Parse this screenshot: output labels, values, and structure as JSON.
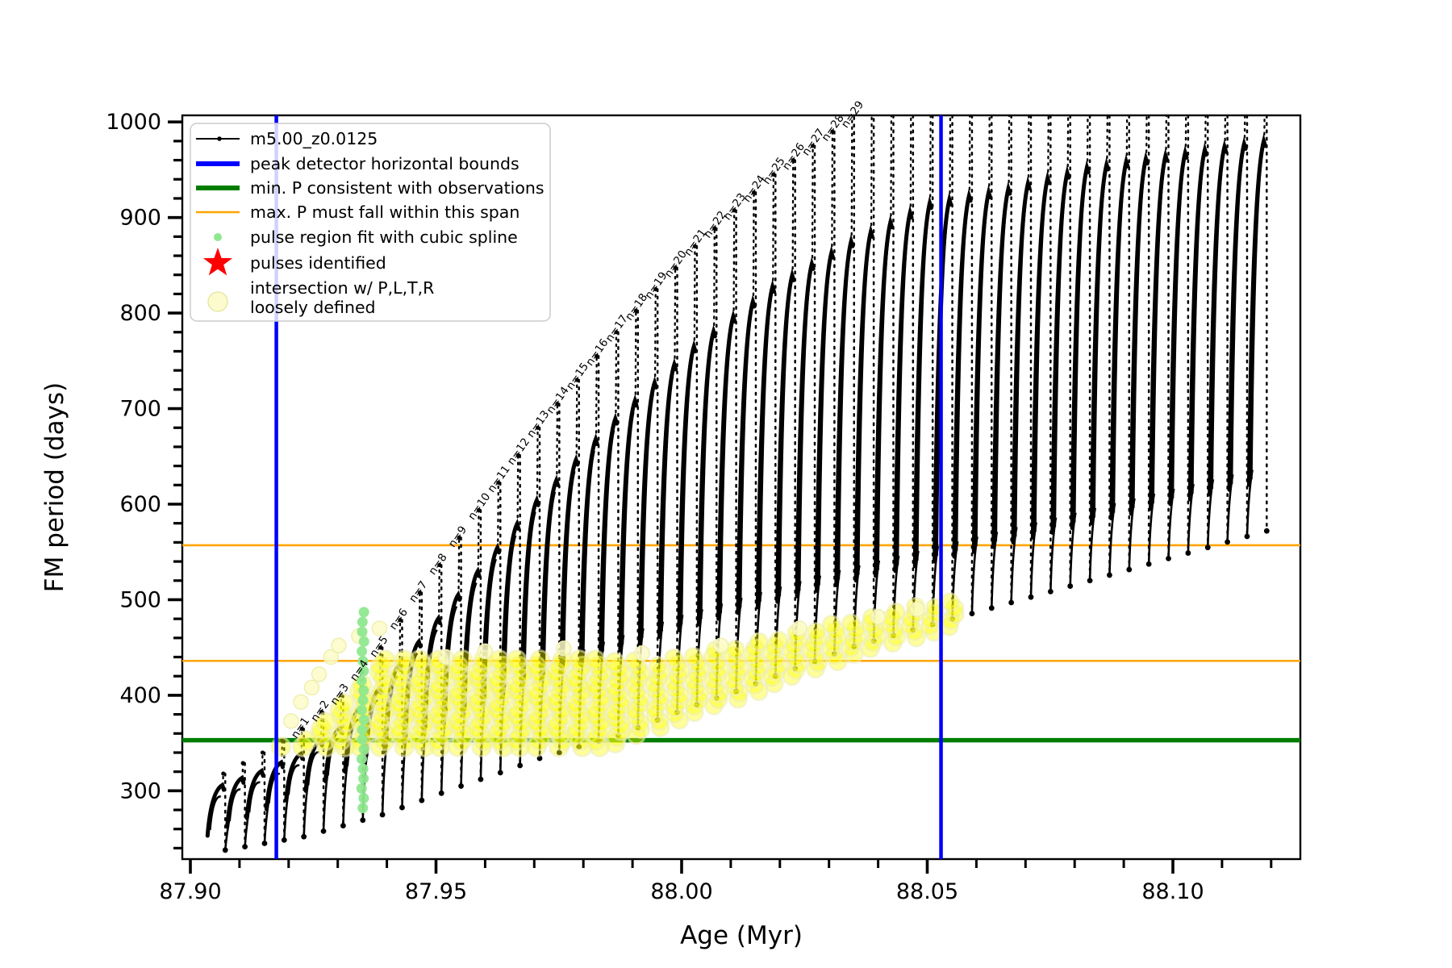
{
  "chart_data": {
    "type": "line",
    "title": "",
    "xlabel": "Age (Myr)",
    "ylabel": "FM period (days)",
    "xlim": [
      87.8984,
      88.1259
    ],
    "ylim": [
      228.6,
      1006.9
    ],
    "x_major_ticks": [
      {
        "v": 87.9,
        "label": "87.90"
      },
      {
        "v": 87.95,
        "label": "87.95"
      },
      {
        "v": 88.0,
        "label": "88.00"
      },
      {
        "v": 88.05,
        "label": "88.05"
      },
      {
        "v": 88.1,
        "label": "88.10"
      }
    ],
    "x_minor_step": 0.01,
    "y_major_ticks": [
      {
        "v": 300,
        "label": "300"
      },
      {
        "v": 400,
        "label": "400"
      },
      {
        "v": 500,
        "label": "500"
      },
      {
        "v": 600,
        "label": "600"
      },
      {
        "v": 700,
        "label": "700"
      },
      {
        "v": 800,
        "label": "800"
      },
      {
        "v": 900,
        "label": "900"
      },
      {
        "v": 1000,
        "label": "1000"
      }
    ],
    "y_minor_step": 20,
    "grid": false,
    "legend_position": "upper-left",
    "guides": {
      "blue_vlines": [
        87.9175,
        88.0528
      ],
      "blue_color": "#0000ff",
      "green_hline": 353,
      "green_color": "#007d00",
      "orange_hlines": [
        436,
        557
      ],
      "orange_color": "#ffa500"
    },
    "series": [
      {
        "name": "m5.00_z0.0125",
        "color": "#000000",
        "pulse_model": {
          "comment": "thermal-pulse train: t_i = t0 + dt*i; each pulse rises from base to shoulder, spikes to peak, drops to tip",
          "t0": 87.9035,
          "dt": 0.004,
          "count": 54,
          "peak_anchors": [
            [
              0,
              318
            ],
            [
              2,
              340
            ],
            [
              4,
              365
            ],
            [
              6,
              400
            ],
            [
              8,
              450
            ],
            [
              12,
              565
            ],
            [
              16,
              680
            ],
            [
              20,
              780
            ],
            [
              24,
              870
            ],
            [
              28,
              945
            ],
            [
              32,
              1005
            ],
            [
              36,
              1060
            ],
            [
              44,
              1120
            ],
            [
              53,
              1165
            ]
          ],
          "base_anchors": [
            [
              0,
              253
            ],
            [
              4,
              290
            ],
            [
              8,
              330
            ],
            [
              12,
              370
            ],
            [
              16,
              408
            ],
            [
              20,
              440
            ],
            [
              24,
              468
            ],
            [
              28,
              492
            ],
            [
              32,
              515
            ],
            [
              36,
              535
            ],
            [
              44,
              575
            ],
            [
              53,
              620
            ]
          ],
          "tip_offset_anchors": [
            [
              0,
              15
            ],
            [
              4,
              38
            ],
            [
              8,
              55
            ],
            [
              14,
              70
            ],
            [
              20,
              82
            ],
            [
              26,
              76
            ],
            [
              32,
              64
            ],
            [
              44,
              55
            ],
            [
              53,
              48
            ]
          ],
          "shoulder_gap_anchors": [
            [
              0,
              12
            ],
            [
              5,
              30
            ],
            [
              12,
              60
            ],
            [
              17,
              80
            ],
            [
              24,
              105
            ],
            [
              32,
              130
            ],
            [
              40,
              160
            ],
            [
              53,
              185
            ]
          ]
        }
      }
    ],
    "pulse_labels": {
      "labels": [
        "n=1",
        "n=2",
        "n=3",
        "n=4",
        "n=5",
        "n=6",
        "n=7",
        "n=8",
        "n=9",
        "n=10",
        "n=11",
        "n=12",
        "n=13",
        "n=14",
        "n=15",
        "n=16",
        "n=17",
        "n=18",
        "n=19",
        "n=20",
        "n=21",
        "n=22",
        "n=23",
        "n=24",
        "n=25",
        "n=26",
        "n=27",
        "n=28",
        "n=29"
      ],
      "first_pulse_index": 4,
      "rotation_deg": -55
    },
    "spline_points": {
      "x": 87.9351,
      "y_min": 282,
      "y_max": 487,
      "count": 21,
      "color": "#8fe88f"
    },
    "yellow_band": {
      "first_pulse": 3,
      "last_pulse": 37,
      "bottom_floor": 346,
      "top_cap": 437,
      "top_growth_start_pulse": 22,
      "top_growth_per_pulse": 4.3,
      "color": "#ffff00",
      "edge_color": "#ededc0"
    },
    "pale_points": {
      "color": "#fbfbc8",
      "points": [
        [
          87.9205,
          373
        ],
        [
          87.9225,
          393
        ],
        [
          87.9247,
          408
        ],
        [
          87.9262,
          422
        ],
        [
          87.9286,
          440
        ],
        [
          87.9302,
          452
        ],
        [
          87.9343,
          462
        ],
        [
          87.9385,
          470
        ],
        [
          87.952,
          440
        ],
        [
          87.96,
          446
        ],
        [
          87.976,
          449
        ],
        [
          87.992,
          444
        ],
        [
          88.008,
          452
        ],
        [
          88.024,
          470
        ],
        [
          88.04,
          482
        ],
        [
          88.048,
          490
        ]
      ]
    }
  },
  "legend": {
    "entries": [
      {
        "marker": "line-dot",
        "color": "#000000",
        "label": "m5.00_z0.0125"
      },
      {
        "marker": "thick-line",
        "color": "#0000ff",
        "label": "peak detector horizontal bounds"
      },
      {
        "marker": "thick-line",
        "color": "#007d00",
        "label": "min. P consistent with observations"
      },
      {
        "marker": "thin-line",
        "color": "#ffa500",
        "label": "max. P must fall within this span"
      },
      {
        "marker": "small-dot",
        "color": "#8fe88f",
        "label": "pulse region fit with cubic spline"
      },
      {
        "marker": "star",
        "color": "#ff0000",
        "label": "pulses identified"
      },
      {
        "marker": "big-dot",
        "color": "#fbfbc8",
        "label": "intersection w/ P,L,T,R",
        "label2": "loosely defined"
      }
    ]
  }
}
